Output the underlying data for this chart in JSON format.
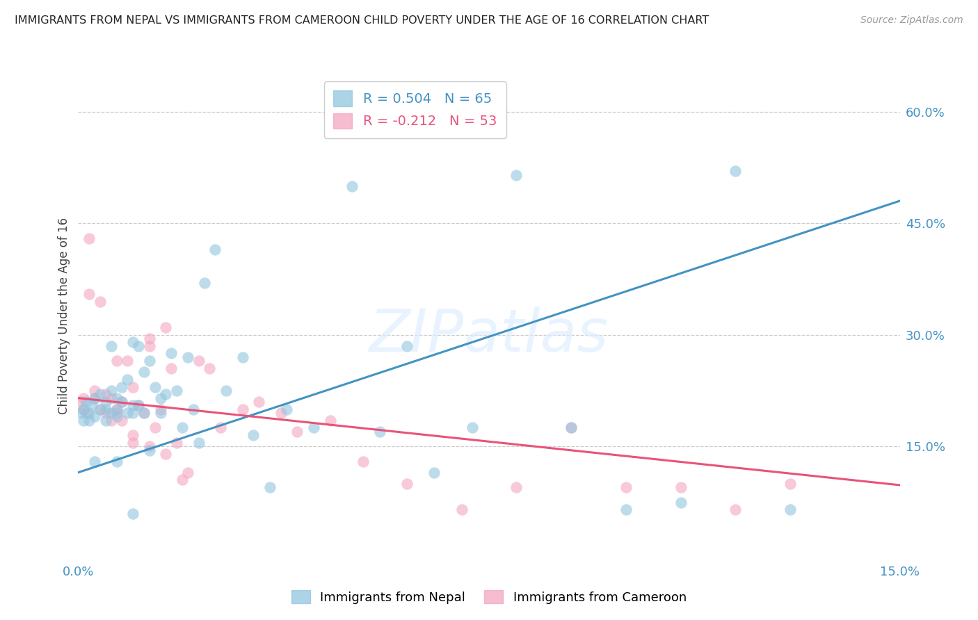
{
  "title": "IMMIGRANTS FROM NEPAL VS IMMIGRANTS FROM CAMEROON CHILD POVERTY UNDER THE AGE OF 16 CORRELATION CHART",
  "source": "Source: ZipAtlas.com",
  "ylabel": "Child Poverty Under the Age of 16",
  "y_tick_labels": [
    "60.0%",
    "45.0%",
    "30.0%",
    "15.0%"
  ],
  "y_tick_values": [
    0.6,
    0.45,
    0.3,
    0.15
  ],
  "xlim": [
    0.0,
    0.15
  ],
  "ylim": [
    0.0,
    0.65
  ],
  "nepal_color": "#92c5de",
  "cameroon_color": "#f4a6c0",
  "nepal_line_color": "#4393c3",
  "cameroon_line_color": "#e8537a",
  "nepal_R": 0.504,
  "nepal_N": 65,
  "cameroon_R": -0.212,
  "cameroon_N": 53,
  "nepal_scatter_x": [
    0.0005,
    0.001,
    0.001,
    0.0015,
    0.002,
    0.002,
    0.0025,
    0.003,
    0.003,
    0.004,
    0.004,
    0.005,
    0.005,
    0.005,
    0.006,
    0.006,
    0.006,
    0.007,
    0.007,
    0.007,
    0.008,
    0.008,
    0.009,
    0.009,
    0.01,
    0.01,
    0.01,
    0.011,
    0.011,
    0.012,
    0.012,
    0.013,
    0.013,
    0.014,
    0.015,
    0.015,
    0.016,
    0.017,
    0.018,
    0.019,
    0.02,
    0.021,
    0.022,
    0.023,
    0.025,
    0.027,
    0.03,
    0.032,
    0.035,
    0.038,
    0.043,
    0.05,
    0.055,
    0.06,
    0.065,
    0.072,
    0.08,
    0.09,
    0.1,
    0.11,
    0.12,
    0.13,
    0.003,
    0.007,
    0.01
  ],
  "nepal_scatter_y": [
    0.195,
    0.2,
    0.185,
    0.21,
    0.195,
    0.185,
    0.205,
    0.19,
    0.215,
    0.2,
    0.22,
    0.185,
    0.21,
    0.2,
    0.225,
    0.195,
    0.285,
    0.215,
    0.2,
    0.19,
    0.23,
    0.21,
    0.195,
    0.24,
    0.205,
    0.195,
    0.29,
    0.205,
    0.285,
    0.195,
    0.25,
    0.145,
    0.265,
    0.23,
    0.215,
    0.195,
    0.22,
    0.275,
    0.225,
    0.175,
    0.27,
    0.2,
    0.155,
    0.37,
    0.415,
    0.225,
    0.27,
    0.165,
    0.095,
    0.2,
    0.175,
    0.5,
    0.17,
    0.285,
    0.115,
    0.175,
    0.515,
    0.175,
    0.065,
    0.075,
    0.52,
    0.065,
    0.13,
    0.13,
    0.06
  ],
  "cameroon_scatter_x": [
    0.0005,
    0.001,
    0.001,
    0.0015,
    0.002,
    0.003,
    0.003,
    0.004,
    0.005,
    0.005,
    0.006,
    0.006,
    0.007,
    0.007,
    0.008,
    0.008,
    0.009,
    0.01,
    0.01,
    0.011,
    0.012,
    0.013,
    0.013,
    0.014,
    0.015,
    0.016,
    0.017,
    0.018,
    0.019,
    0.02,
    0.022,
    0.024,
    0.026,
    0.03,
    0.033,
    0.037,
    0.04,
    0.046,
    0.052,
    0.06,
    0.07,
    0.08,
    0.09,
    0.1,
    0.11,
    0.12,
    0.13,
    0.002,
    0.004,
    0.007,
    0.01,
    0.013,
    0.016
  ],
  "cameroon_scatter_y": [
    0.21,
    0.2,
    0.215,
    0.195,
    0.355,
    0.215,
    0.225,
    0.2,
    0.195,
    0.22,
    0.185,
    0.215,
    0.2,
    0.195,
    0.185,
    0.21,
    0.265,
    0.155,
    0.165,
    0.205,
    0.195,
    0.285,
    0.295,
    0.175,
    0.2,
    0.31,
    0.255,
    0.155,
    0.105,
    0.115,
    0.265,
    0.255,
    0.175,
    0.2,
    0.21,
    0.195,
    0.17,
    0.185,
    0.13,
    0.1,
    0.065,
    0.095,
    0.175,
    0.095,
    0.095,
    0.065,
    0.1,
    0.43,
    0.345,
    0.265,
    0.23,
    0.15,
    0.14
  ],
  "background_color": "#ffffff",
  "watermark_text": "ZIPatlas",
  "nepal_line_x": [
    0.0,
    0.15
  ],
  "nepal_line_y": [
    0.115,
    0.48
  ],
  "cameroon_line_x": [
    0.0,
    0.15
  ],
  "cameroon_line_y": [
    0.215,
    0.098
  ]
}
